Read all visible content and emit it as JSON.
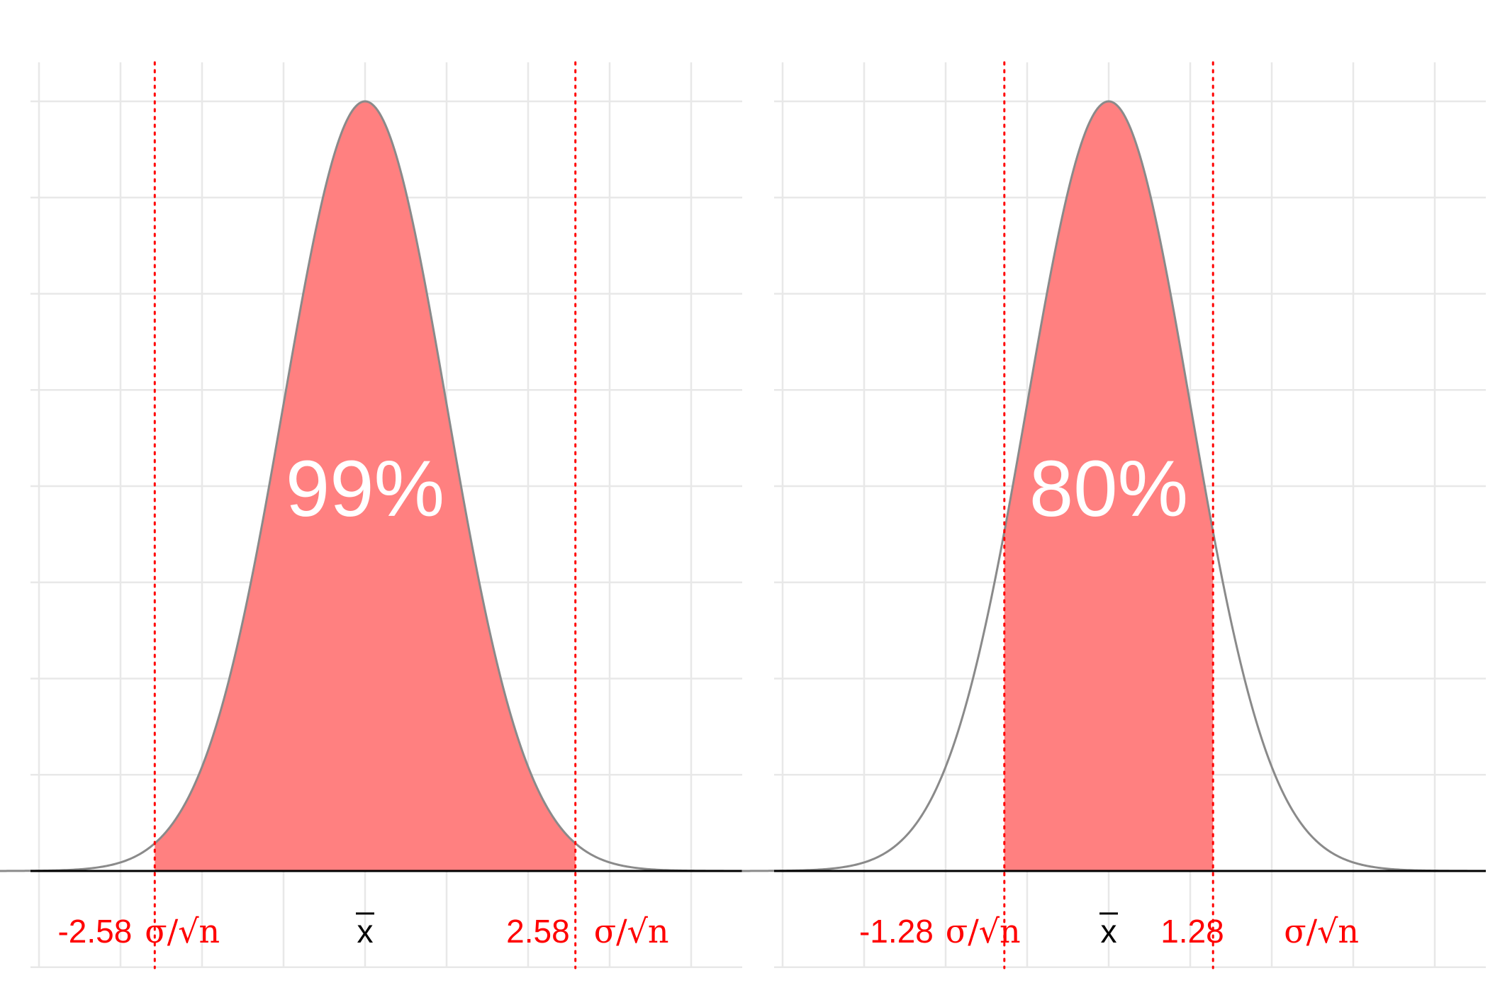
{
  "chart_data": [
    {
      "type": "area",
      "confidence_label": "99%",
      "z": 2.58,
      "xlim": [
        -4.5,
        4.5
      ],
      "ylim": [
        0,
        0.4
      ],
      "grid": true,
      "fill_color": "#ff8080",
      "curve_color": "#8a8a8a",
      "line_color": "#ff0000",
      "labels": {
        "lower_value": "-2.58",
        "lower_sigma": "σ/√n",
        "center": "x",
        "upper_value": "2.58",
        "upper_sigma": "σ/√n"
      }
    },
    {
      "type": "area",
      "confidence_label": "80%",
      "z": 1.28,
      "xlim": [
        -4.5,
        4.5
      ],
      "ylim": [
        0,
        0.4
      ],
      "grid": true,
      "fill_color": "#ff8080",
      "curve_color": "#8a8a8a",
      "line_color": "#ff0000",
      "labels": {
        "lower_value": "-1.28",
        "lower_sigma": "σ/√n",
        "center": "x",
        "upper_value": "1.28",
        "upper_sigma": "σ/√n"
      }
    }
  ],
  "colors": {
    "label_red": "#ff0000",
    "center_black": "#000000"
  }
}
